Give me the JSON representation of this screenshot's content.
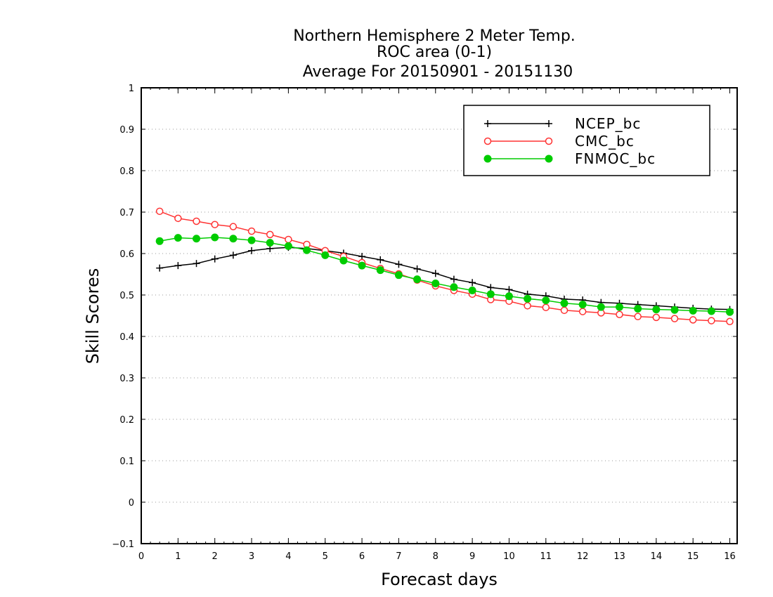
{
  "chart_data": {
    "type": "line",
    "title_lines": [
      "Northern Hemisphere 2 Meter Temp.",
      "ROC area (0-1)",
      "Average For 20150901 - 20151130"
    ],
    "xlabel": "Forecast days",
    "ylabel": "Skill Scores",
    "xlim": [
      0,
      16.2
    ],
    "ylim": [
      -0.1,
      1
    ],
    "x_ticks": [
      0,
      1,
      2,
      3,
      4,
      5,
      6,
      7,
      8,
      9,
      10,
      11,
      12,
      13,
      14,
      15,
      16
    ],
    "y_ticks": [
      -0.1,
      0,
      0.1,
      0.2,
      0.3,
      0.4,
      0.5,
      0.6,
      0.7,
      0.8,
      0.9,
      1
    ],
    "y_tick_labels": [
      "−0.1",
      "0",
      "0.1",
      "0.2",
      "0.3",
      "0.4",
      "0.5",
      "0.6",
      "0.7",
      "0.8",
      "0.9",
      "1"
    ],
    "grid": "horizontal-dotted",
    "legend_position": "top-right",
    "x": [
      0.5,
      1,
      1.5,
      2,
      2.5,
      3,
      3.5,
      4,
      4.5,
      5,
      5.5,
      6,
      6.5,
      7,
      7.5,
      8,
      8.5,
      9,
      9.5,
      10,
      10.5,
      11,
      11.5,
      12,
      12.5,
      13,
      13.5,
      14,
      14.5,
      15,
      15.5,
      16
    ],
    "series": [
      {
        "name": "NCEP_bc",
        "color": "#000000",
        "marker": "plus",
        "values": [
          0.565,
          0.571,
          0.576,
          0.587,
          0.596,
          0.607,
          0.612,
          0.615,
          0.612,
          0.607,
          0.601,
          0.593,
          0.585,
          0.574,
          0.563,
          0.552,
          0.538,
          0.53,
          0.518,
          0.513,
          0.502,
          0.498,
          0.49,
          0.488,
          0.482,
          0.48,
          0.477,
          0.474,
          0.471,
          0.468,
          0.466,
          0.465
        ]
      },
      {
        "name": "CMC_bc",
        "color": "#ff3333",
        "marker": "open-circle",
        "values": [
          0.702,
          0.685,
          0.678,
          0.67,
          0.665,
          0.654,
          0.646,
          0.634,
          0.622,
          0.607,
          0.593,
          0.578,
          0.564,
          0.551,
          0.536,
          0.522,
          0.511,
          0.502,
          0.489,
          0.485,
          0.474,
          0.47,
          0.463,
          0.46,
          0.457,
          0.453,
          0.448,
          0.446,
          0.443,
          0.44,
          0.438,
          0.436
        ]
      },
      {
        "name": "FNMOC_bc",
        "color": "#00cc00",
        "marker": "filled-circle",
        "values": [
          0.63,
          0.638,
          0.636,
          0.639,
          0.636,
          0.632,
          0.626,
          0.618,
          0.608,
          0.596,
          0.583,
          0.571,
          0.56,
          0.548,
          0.538,
          0.528,
          0.519,
          0.511,
          0.502,
          0.497,
          0.491,
          0.487,
          0.48,
          0.477,
          0.471,
          0.471,
          0.467,
          0.465,
          0.464,
          0.462,
          0.461,
          0.459
        ]
      }
    ]
  }
}
